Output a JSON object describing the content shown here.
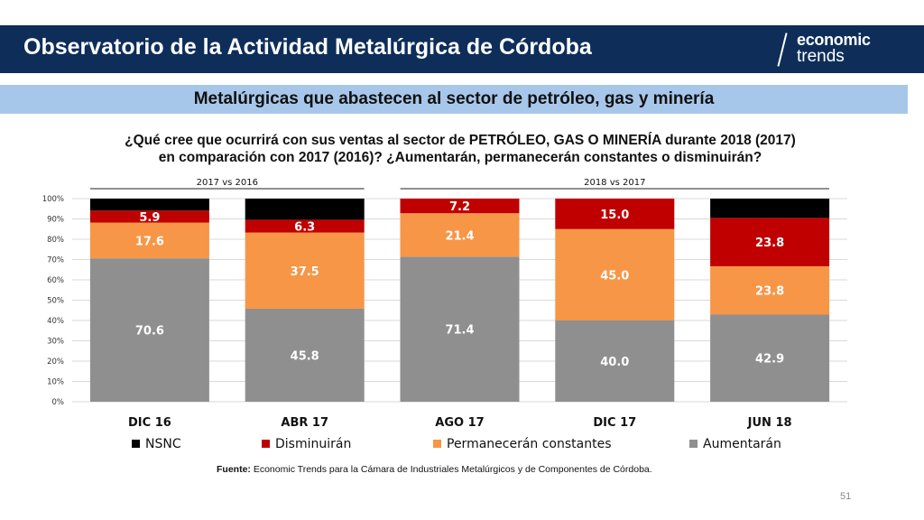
{
  "header": {
    "title": "Observatorio de la Actividad Metalúrgica de Córdoba",
    "logo_line1": "economic",
    "logo_line2": "trends"
  },
  "subtitle": "Metalúrgicas que abastecen al sector de petróleo, gas y minería",
  "question": {
    "line1": "¿Qué cree que ocurrirá con sus ventas al sector de PETRÓLEO, GAS O MINERÍA durante 2018 (2017)",
    "line2": "en comparación con 2017 (2016)? ¿Aumentarán, permanecerán constantes o disminuirán?"
  },
  "source": {
    "label": "Fuente:",
    "text": "Economic Trends para la Cámara de Industriales Metalúrgicos y de Componentes de Córdoba."
  },
  "page_number": "51",
  "colors": {
    "aumentaran": "#8f8f8f",
    "permaneceran": "#f79646",
    "disminuiran": "#c00000",
    "nsnc": "#000000"
  },
  "chart_data": {
    "type": "bar",
    "stacked": true,
    "percent": true,
    "categories": [
      "DIC 16",
      "ABR 17",
      "AGO 17",
      "DIC 17",
      "JUN 18"
    ],
    "group_labels": [
      {
        "label": "2017 vs 2016",
        "categories": [
          "DIC 16",
          "ABR 17"
        ]
      },
      {
        "label": "2018 vs 2017",
        "categories": [
          "AGO 17",
          "DIC 17",
          "JUN 18"
        ]
      }
    ],
    "series": [
      {
        "name": "Aumentarán",
        "color": "#8f8f8f",
        "values": [
          70.6,
          45.8,
          71.4,
          40.0,
          42.9
        ],
        "labels": [
          "70.6",
          "45.8",
          "71.4",
          "40.0",
          "42.9"
        ]
      },
      {
        "name": "Permanecerán constantes",
        "color": "#f79646",
        "values": [
          17.6,
          37.5,
          21.4,
          45.0,
          23.8
        ],
        "labels": [
          "17.6",
          "37.5",
          "21.4",
          "45.0",
          "23.8"
        ]
      },
      {
        "name": "Disminuirán",
        "color": "#c00000",
        "values": [
          5.9,
          6.3,
          7.2,
          15.0,
          23.8
        ],
        "labels": [
          "5.9",
          "6.3",
          "7.2",
          "15.0",
          "23.8"
        ]
      },
      {
        "name": "NSNC",
        "color": "#000000",
        "values": [
          5.9,
          10.4,
          0.0,
          0.0,
          9.5
        ],
        "labels": [
          "",
          "",
          "",
          "",
          ""
        ]
      }
    ],
    "legend_order": [
      "NSNC",
      "Disminuirán",
      "Permanecerán constantes",
      "Aumentarán"
    ],
    "yticks": [
      "0%",
      "10%",
      "20%",
      "30%",
      "40%",
      "50%",
      "60%",
      "70%",
      "80%",
      "90%",
      "100%"
    ],
    "ylim": [
      0,
      100
    ],
    "grid": true,
    "legend_position": "bottom"
  }
}
